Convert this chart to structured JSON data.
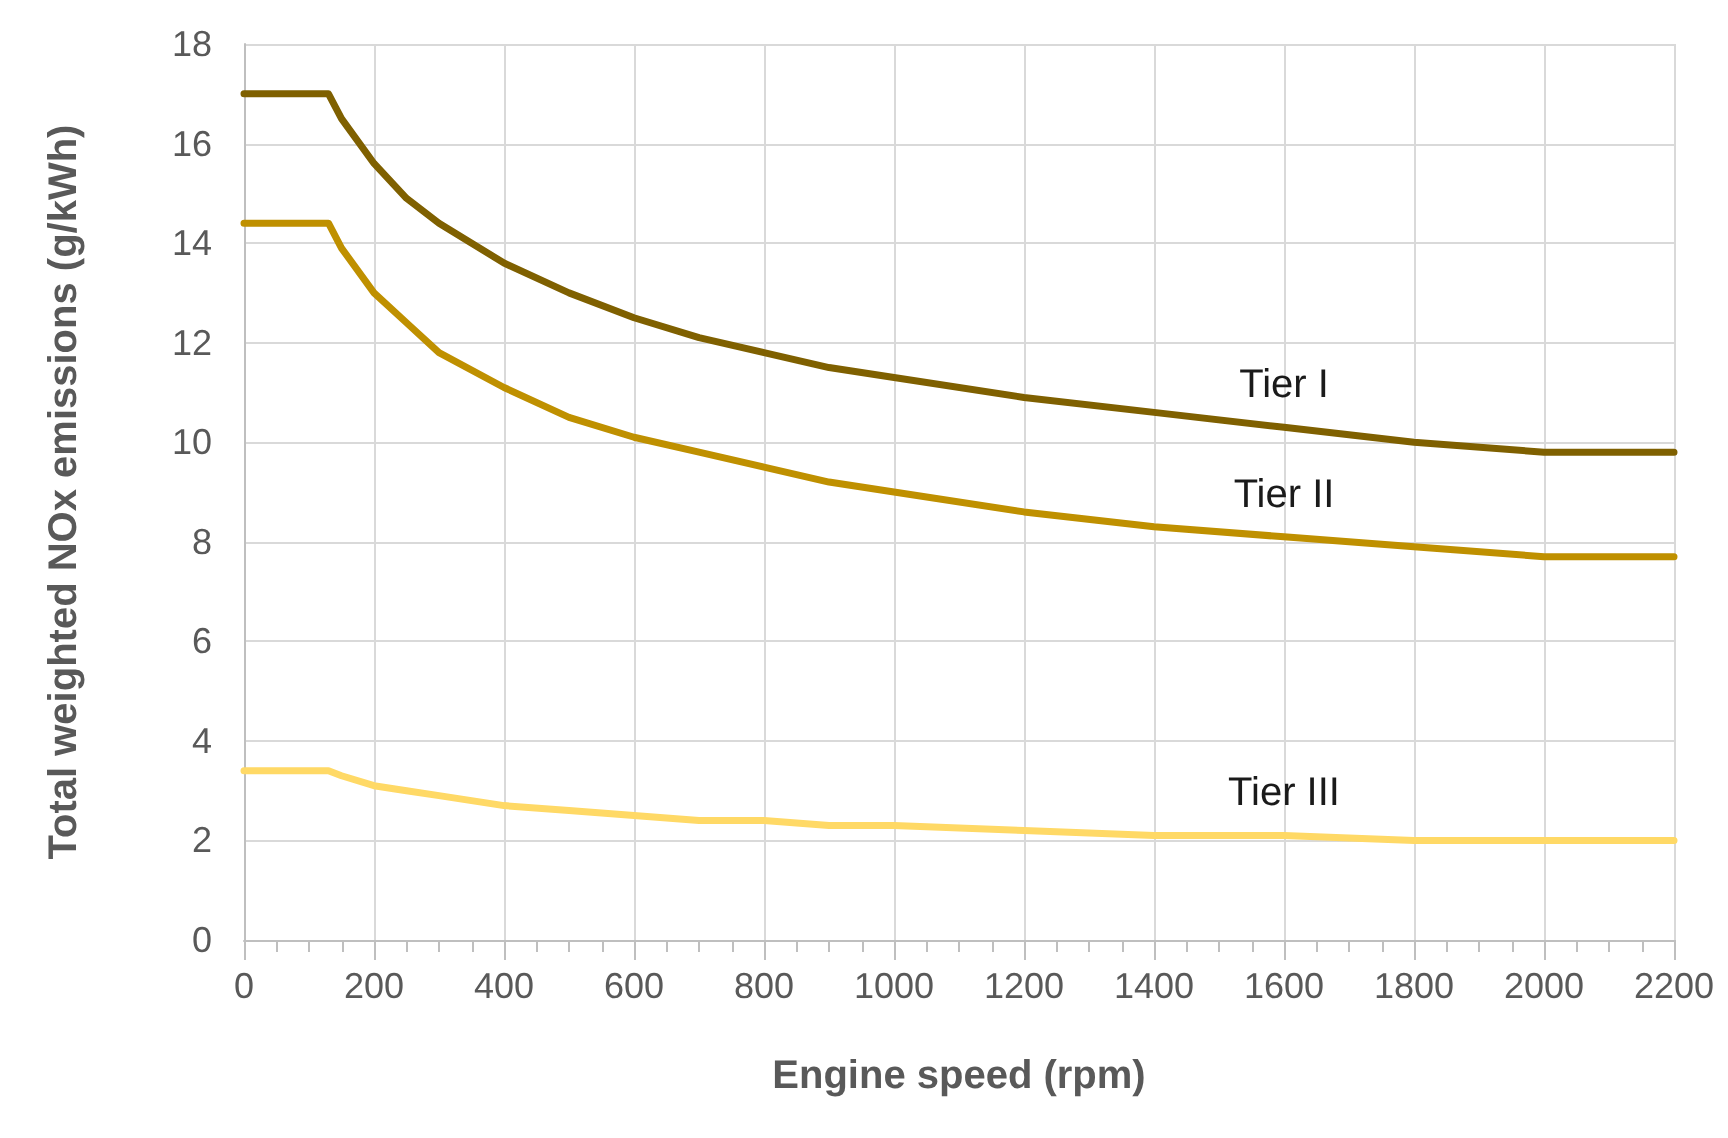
{
  "chart_data": {
    "type": "line",
    "xlabel": "Engine speed (rpm)",
    "ylabel": "Total weighted NOx emissions (g/kWh)",
    "x": [
      0,
      130,
      150,
      200,
      250,
      300,
      400,
      500,
      600,
      700,
      800,
      900,
      1000,
      1200,
      1400,
      1600,
      1800,
      2000,
      2200
    ],
    "series": [
      {
        "name": "Tier I",
        "color": "#7f6000",
        "values": [
          17.0,
          17.0,
          16.5,
          15.6,
          14.9,
          14.4,
          13.6,
          13.0,
          12.5,
          12.1,
          11.8,
          11.5,
          11.3,
          10.9,
          10.6,
          10.3,
          10.0,
          9.8,
          9.8
        ]
      },
      {
        "name": "Tier II",
        "color": "#bf9000",
        "values": [
          14.4,
          14.4,
          13.9,
          13.0,
          12.4,
          11.8,
          11.1,
          10.5,
          10.1,
          9.8,
          9.5,
          9.2,
          9.0,
          8.6,
          8.3,
          8.1,
          7.9,
          7.7,
          7.7
        ]
      },
      {
        "name": "Tier III",
        "color": "#ffd966",
        "values": [
          3.4,
          3.4,
          3.3,
          3.1,
          3.0,
          2.9,
          2.7,
          2.6,
          2.5,
          2.4,
          2.4,
          2.3,
          2.3,
          2.2,
          2.1,
          2.1,
          2.0,
          2.0,
          2.0
        ]
      }
    ],
    "xlim": [
      0,
      2200
    ],
    "xticks": [
      0,
      200,
      400,
      600,
      800,
      1000,
      1200,
      1400,
      1600,
      1800,
      2000,
      2200
    ],
    "ylim": [
      0,
      18
    ],
    "yticks": [
      0,
      2,
      4,
      6,
      8,
      10,
      12,
      14,
      16,
      18
    ],
    "grid": true,
    "legend": false,
    "marker": "none",
    "line_style": "solid"
  }
}
